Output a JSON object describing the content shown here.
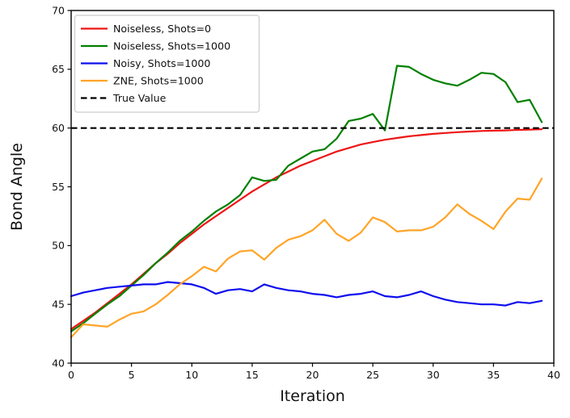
{
  "figure": {
    "background": "#ffffff",
    "axis_color": "#000000",
    "legend_border_color": "#cccccc",
    "legend_background": "#ffffff"
  },
  "chart_data": {
    "type": "line",
    "title": "",
    "xlabel": "Iteration",
    "ylabel": "Bond Angle",
    "xlim": [
      0,
      40
    ],
    "ylim": [
      40,
      70
    ],
    "x_ticks": [
      0,
      5,
      10,
      15,
      20,
      25,
      30,
      35,
      40
    ],
    "y_ticks": [
      40,
      45,
      50,
      55,
      60,
      65,
      70
    ],
    "grid": false,
    "legend_position": "upper left",
    "x": [
      0,
      1,
      2,
      3,
      4,
      5,
      6,
      7,
      8,
      9,
      10,
      11,
      12,
      13,
      14,
      15,
      16,
      17,
      18,
      19,
      20,
      21,
      22,
      23,
      24,
      25,
      26,
      27,
      28,
      29,
      30,
      31,
      32,
      33,
      34,
      35,
      36,
      37,
      38,
      39
    ],
    "series": [
      {
        "id": "noiseless-shots-0",
        "name": "Noiseless, Shots=0",
        "color": "#ee1414",
        "style": "solid",
        "values": [
          42.9,
          43.6,
          44.3,
          45.1,
          45.9,
          46.7,
          47.6,
          48.5,
          49.3,
          50.2,
          51.0,
          51.8,
          52.5,
          53.2,
          53.9,
          54.6,
          55.2,
          55.8,
          56.3,
          56.8,
          57.2,
          57.6,
          58.0,
          58.3,
          58.6,
          58.8,
          59.0,
          59.15,
          59.3,
          59.4,
          59.5,
          59.58,
          59.65,
          59.7,
          59.75,
          59.78,
          59.8,
          59.84,
          59.87,
          59.9
        ]
      },
      {
        "id": "noiseless-shots-1000",
        "name": "Noiseless, Shots=1000",
        "color": "#008000",
        "style": "solid",
        "values": [
          42.7,
          43.4,
          44.2,
          45.0,
          45.7,
          46.6,
          47.5,
          48.5,
          49.4,
          50.4,
          51.2,
          52.1,
          52.9,
          53.5,
          54.3,
          55.8,
          55.5,
          55.6,
          56.8,
          57.4,
          58.0,
          58.2,
          59.1,
          60.6,
          60.8,
          61.2,
          59.8,
          65.3,
          65.2,
          64.6,
          64.1,
          63.8,
          63.6,
          64.1,
          64.7,
          64.6,
          63.9,
          62.2,
          62.4,
          60.5
        ]
      },
      {
        "id": "noisy-shots-1000",
        "name": "Noisy, Shots=1000",
        "color": "#0d0dee",
        "style": "solid",
        "values": [
          45.7,
          46.0,
          46.2,
          46.4,
          46.5,
          46.6,
          46.7,
          46.7,
          46.9,
          46.8,
          46.7,
          46.4,
          45.9,
          46.2,
          46.3,
          46.1,
          46.7,
          46.4,
          46.2,
          46.1,
          45.9,
          45.8,
          45.6,
          45.8,
          45.9,
          46.1,
          45.7,
          45.6,
          45.8,
          46.1,
          45.7,
          45.4,
          45.2,
          45.1,
          45.0,
          45.0,
          44.9,
          45.2,
          45.1,
          45.3
        ]
      },
      {
        "id": "zne-shots-1000",
        "name": "ZNE, Shots=1000",
        "color": "#ffa426",
        "style": "solid",
        "values": [
          42.2,
          43.3,
          43.2,
          43.1,
          43.7,
          44.2,
          44.4,
          45.0,
          45.8,
          46.7,
          47.4,
          48.2,
          47.8,
          48.9,
          49.5,
          49.6,
          48.8,
          49.8,
          50.5,
          50.8,
          51.3,
          52.2,
          51.0,
          50.4,
          51.1,
          52.4,
          52.0,
          51.2,
          51.3,
          51.3,
          51.6,
          52.4,
          53.5,
          52.7,
          52.1,
          51.4,
          52.9,
          54.0,
          53.9,
          55.7
        ]
      },
      {
        "id": "true-value",
        "name": "True Value",
        "color": "#000000",
        "style": "dashed",
        "constant": 60
      }
    ]
  }
}
